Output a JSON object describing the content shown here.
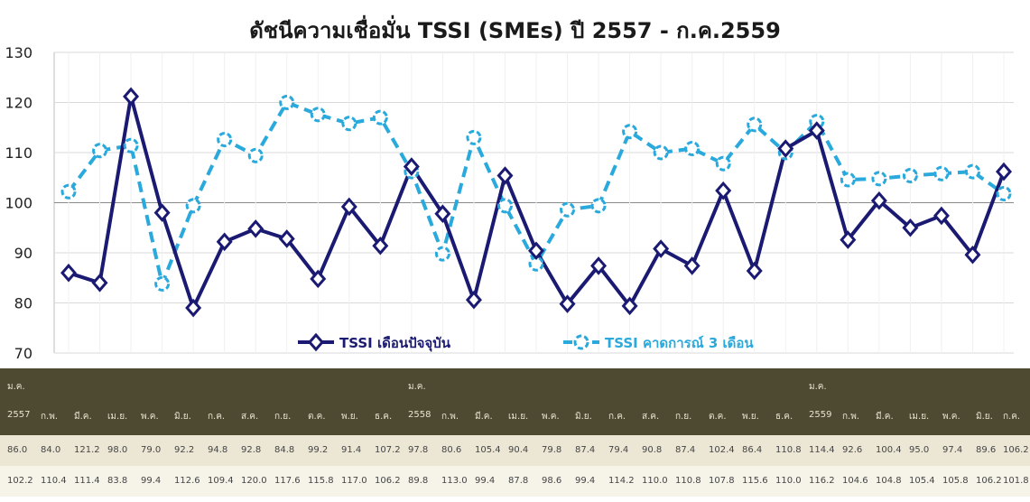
{
  "chart_data": {
    "type": "line",
    "title": "ดัชนีความเชื่อมั่น TSSI (SMEs) ปี 2557 - ก.ค.2559",
    "ylim": [
      70,
      130
    ],
    "yticks": [
      70,
      80,
      90,
      100,
      110,
      120,
      130
    ],
    "grid": true,
    "legend_position": "bottom-center",
    "categories": [
      "ม.ค. 2557",
      "ก.พ.",
      "มี.ค.",
      "เม.ย.",
      "พ.ค.",
      "มิ.ย.",
      "ก.ค.",
      "ส.ค.",
      "ก.ย.",
      "ต.ค.",
      "พ.ย.",
      "ธ.ค.",
      "ม.ค. 2558",
      "ก.พ.",
      "มี.ค.",
      "เม.ย.",
      "พ.ค.",
      "มิ.ย.",
      "ก.ค.",
      "ส.ค.",
      "ก.ย.",
      "ต.ค.",
      "พ.ย.",
      "ธ.ค.",
      "ม.ค. 2559",
      "ก.พ.",
      "มี.ค.",
      "เม.ย.",
      "พ.ค.",
      "มิ.ย.",
      "ก.ค."
    ],
    "series": [
      {
        "name": "TSSI เดือนปัจจุบัน",
        "color": "#1b1a72",
        "marker": "diamond",
        "values": [
          86.0,
          84.0,
          121.2,
          98.0,
          79.0,
          92.2,
          94.8,
          92.8,
          84.8,
          99.2,
          91.4,
          107.2,
          97.8,
          80.6,
          105.4,
          90.4,
          79.8,
          87.4,
          79.4,
          90.8,
          87.4,
          102.4,
          86.4,
          110.8,
          114.4,
          92.6,
          100.4,
          95.0,
          97.4,
          89.6,
          106.2
        ]
      },
      {
        "name": "TSSI คาดการณ์ 3 เดือน",
        "color": "#2aa9dc",
        "marker": "circle",
        "values": [
          102.2,
          110.4,
          111.4,
          83.8,
          99.4,
          112.6,
          109.4,
          120.0,
          117.6,
          115.8,
          117.0,
          106.2,
          89.8,
          113.0,
          99.4,
          87.8,
          98.6,
          99.4,
          114.2,
          110.0,
          110.8,
          107.8,
          115.6,
          110.0,
          116.2,
          104.6,
          104.8,
          105.4,
          105.8,
          106.2,
          101.8
        ]
      }
    ]
  },
  "table": {
    "year_row": [
      "ม.ค.",
      "",
      "",
      "",
      "",
      "",
      "",
      "",
      "",
      "",
      "",
      "",
      "ม.ค.",
      "",
      "",
      "",
      "",
      "",
      "",
      "",
      "",
      "",
      "",
      "",
      "ม.ค.",
      "",
      "",
      "",
      "",
      "",
      ""
    ],
    "month_row": [
      "2557",
      "ก.พ.",
      "มี.ค.",
      "เม.ย.",
      "พ.ค.",
      "มิ.ย.",
      "ก.ค.",
      "ส.ค.",
      "ก.ย.",
      "ต.ค.",
      "พ.ย.",
      "ธ.ค.",
      "2558",
      "ก.พ.",
      "มี.ค.",
      "เม.ย.",
      "พ.ค.",
      "มิ.ย.",
      "ก.ค.",
      "ส.ค.",
      "ก.ย.",
      "ต.ค.",
      "พ.ย.",
      "ธ.ค.",
      "2559",
      "ก.พ.",
      "มี.ค.",
      "เม.ย.",
      "พ.ค.",
      "มิ.ย.",
      "ก.ค."
    ],
    "current_row": [
      "86.0",
      "84.0",
      "121.2",
      "98.0",
      "79.0",
      "92.2",
      "94.8",
      "92.8",
      "84.8",
      "99.2",
      "91.4",
      "107.2",
      "97.8",
      "80.6",
      "105.4",
      "90.4",
      "79.8",
      "87.4",
      "79.4",
      "90.8",
      "87.4",
      "102.4",
      "86.4",
      "110.8",
      "114.4",
      "92.6",
      "100.4",
      "95.0",
      "97.4",
      "89.6",
      "106.2"
    ],
    "expect_row": [
      "102.2",
      "110.4",
      "111.4",
      "83.8",
      "99.4",
      "112.6",
      "109.4",
      "120.0",
      "117.6",
      "115.8",
      "117.0",
      "106.2",
      "89.8",
      "113.0",
      "99.4",
      "87.8",
      "98.6",
      "99.4",
      "114.2",
      "110.0",
      "110.8",
      "107.8",
      "115.6",
      "110.0",
      "116.2",
      "104.6",
      "104.8",
      "105.4",
      "105.8",
      "106.2",
      "101.8"
    ]
  }
}
